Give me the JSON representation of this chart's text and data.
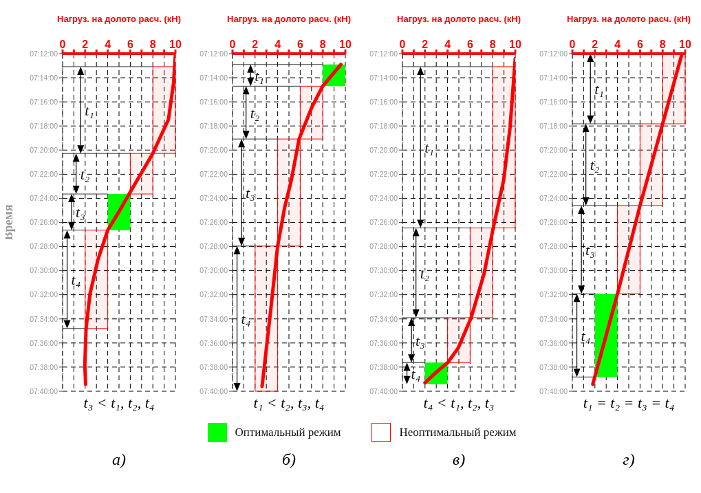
{
  "chart_data": [
    {
      "type": "line",
      "xlabel": "Нагруз. на долото расч. (кН)",
      "ylabel": "Время",
      "xlim": [
        0,
        10
      ],
      "xticks": [
        0,
        {
          "value": 1,
          "label": null
        },
        2,
        {
          "value": 3,
          "label": null
        },
        4,
        {
          "value": 5,
          "label": null
        },
        6,
        {
          "value": 7,
          "label": null
        },
        8,
        {
          "value": 9,
          "label": null
        },
        10
      ],
      "ylim": [
        7.6667,
        7.2
      ],
      "yticks": [
        {
          "value": 7.2,
          "label": "07:12:00"
        },
        {
          "value": 7.2333,
          "label": "07:14:00"
        },
        {
          "value": 7.2667,
          "label": "07:16:00"
        },
        {
          "value": 7.3,
          "label": "07:18:00"
        },
        {
          "value": 7.3333,
          "label": "07:20:00"
        },
        {
          "value": 7.3667,
          "label": "07:22:00"
        },
        {
          "value": 7.4,
          "label": "07:24:00"
        },
        {
          "value": 7.4333,
          "label": "07:26:00"
        },
        {
          "value": 7.4667,
          "label": "07:28:00"
        },
        {
          "value": 7.5,
          "label": "07:30:00"
        },
        {
          "value": 7.5333,
          "label": "07:32:00"
        },
        {
          "value": 7.5667,
          "label": "07:34:00"
        },
        {
          "value": 7.6,
          "label": "07:36:00"
        },
        {
          "value": 7.6333,
          "label": "07:38:00"
        },
        {
          "value": 7.6667,
          "label": "07:40:00"
        }
      ],
      "grid": true,
      "series": [
        {
          "type": "line",
          "color": "#ff0000",
          "x": [
            8,
            10
          ],
          "values": [
            null,
            null
          ],
          "lower": [
            7.218,
            7.218
          ],
          "upper": [
            7.338,
            7.338
          ]
        },
        {
          "type": "line",
          "color": "#ff0000",
          "x": [
            6,
            8
          ],
          "values": [
            null,
            null
          ],
          "lower": [
            7.338,
            7.338
          ],
          "upper": [
            7.394,
            7.394
          ]
        },
        {
          "type": "line",
          "color": "#00ff00",
          "x": [
            4,
            6
          ],
          "values": [
            null,
            null
          ],
          "lower": [
            7.394,
            7.394
          ],
          "upper": [
            7.444,
            7.444
          ]
        },
        {
          "type": "line",
          "color": "#ff0000",
          "x": [
            2,
            4
          ],
          "values": [
            null,
            null
          ],
          "lower": [
            7.444,
            7.444
          ],
          "upper": [
            7.58,
            7.58
          ]
        },
        {
          "type": "line",
          "color": "#ff0000",
          "x": [
            10,
            9.84,
            9.38,
            7.99,
            5.9,
            4.98,
            4.0,
            3.13,
            2.43,
            2.08,
            1.97,
            2.04
          ],
          "values": [
            7.2,
            7.24,
            7.291,
            7.338,
            7.394,
            7.419,
            7.444,
            7.485,
            7.532,
            7.58,
            7.631,
            7.657
          ]
        }
      ],
      "ref_lines": [
        {
          "axis": "y",
          "value": 7.218,
          "color": "#333333"
        },
        {
          "axis": "y",
          "value": 7.338,
          "color": "#333333"
        },
        {
          "axis": "y",
          "value": 7.394,
          "color": "#333333"
        },
        {
          "axis": "y",
          "value": 7.444,
          "color": "#333333"
        },
        {
          "axis": "y",
          "value": 7.58,
          "color": "#333333"
        }
      ],
      "annotations": [
        "t₃ < t₁, t₂, t₄",
        "а)",
        "t₁",
        "t₂",
        "t₃",
        "t₄"
      ]
    },
    {
      "type": "line",
      "xlabel": "Нагруз. на долото расч. (кН)",
      "xlim": [
        0,
        10
      ],
      "xticks": [
        0,
        {
          "value": 1,
          "label": null
        },
        2,
        {
          "value": 3,
          "label": null
        },
        4,
        {
          "value": 5,
          "label": null
        },
        6,
        {
          "value": 7,
          "label": null
        },
        8,
        {
          "value": 9,
          "label": null
        },
        10
      ],
      "ylim": [
        7.6667,
        7.2
      ],
      "yticks": [
        {
          "value": 7.2,
          "label": "07:12:00"
        },
        {
          "value": 7.2333,
          "label": "07:14:00"
        },
        {
          "value": 7.2667,
          "label": "07:16:00"
        },
        {
          "value": 7.3,
          "label": "07:18:00"
        },
        {
          "value": 7.3333,
          "label": "07:20:00"
        },
        {
          "value": 7.3667,
          "label": "07:22:00"
        },
        {
          "value": 7.4,
          "label": "07:24:00"
        },
        {
          "value": 7.4333,
          "label": "07:26:00"
        },
        {
          "value": 7.4667,
          "label": "07:28:00"
        },
        {
          "value": 7.5,
          "label": "07:30:00"
        },
        {
          "value": 7.5333,
          "label": "07:32:00"
        },
        {
          "value": 7.5667,
          "label": "07:34:00"
        },
        {
          "value": 7.6,
          "label": "07:36:00"
        },
        {
          "value": 7.6333,
          "label": "07:38:00"
        },
        {
          "value": 7.6667,
          "label": "07:40:00"
        }
      ],
      "grid": true,
      "legend": "bottom",
      "series": [
        {
          "type": "line",
          "name": "Оптимальный режим",
          "color": "#00ff00",
          "x": [
            8,
            10
          ],
          "values": [
            null,
            null
          ],
          "lower": [
            7.215,
            7.215
          ],
          "upper": [
            7.245,
            7.245
          ]
        },
        {
          "type": "line",
          "color": "#ff0000",
          "x": [
            6,
            8
          ],
          "values": [
            null,
            null
          ],
          "lower": [
            7.245,
            7.245
          ],
          "upper": [
            7.318,
            7.318
          ]
        },
        {
          "type": "line",
          "color": "#ff0000",
          "x": [
            4,
            6
          ],
          "values": [
            null,
            null
          ],
          "lower": [
            7.318,
            7.318
          ],
          "upper": [
            7.466,
            7.466
          ]
        },
        {
          "type": "line",
          "color": "#ff0000",
          "x": [
            2,
            4
          ],
          "values": [
            null,
            null
          ],
          "lower": [
            7.466,
            7.466
          ],
          "upper": [
            7.6667,
            7.6667
          ]
        },
        {
          "type": "line",
          "color": "#ff0000",
          "x": [
            9.6,
            7.99,
            7.06,
            5.9,
            5.21,
            4.63,
            4.0,
            3.36,
            2.62
          ],
          "values": [
            7.215,
            7.245,
            7.273,
            7.318,
            7.375,
            7.412,
            7.466,
            7.558,
            7.66
          ]
        }
      ],
      "ref_lines": [
        {
          "axis": "y",
          "value": 7.215,
          "color": "#333333"
        },
        {
          "axis": "y",
          "value": 7.245,
          "color": "#333333"
        },
        {
          "axis": "y",
          "value": 7.318,
          "color": "#333333"
        },
        {
          "axis": "y",
          "value": 7.466,
          "color": "#333333"
        }
      ],
      "annotations": [
        "t₁ < t₂, t₃, t₄",
        "б)",
        "t₁",
        "t₂",
        "t₃",
        "t₄"
      ]
    },
    {
      "type": "line",
      "xlabel": "Нагруз. на долото расч. (кН)",
      "xlim": [
        0,
        10
      ],
      "xticks": [
        0,
        {
          "value": 1,
          "label": null
        },
        2,
        {
          "value": 3,
          "label": null
        },
        4,
        {
          "value": 5,
          "label": null
        },
        6,
        {
          "value": 7,
          "label": null
        },
        8,
        {
          "value": 9,
          "label": null
        },
        10
      ],
      "ylim": [
        7.6667,
        7.2
      ],
      "yticks": [
        {
          "value": 7.2,
          "label": "07:12:00"
        },
        {
          "value": 7.2333,
          "label": "07:14:00"
        },
        {
          "value": 7.2667,
          "label": "07:16:00"
        },
        {
          "value": 7.3,
          "label": "07:18:00"
        },
        {
          "value": 7.3333,
          "label": "07:20:00"
        },
        {
          "value": 7.3667,
          "label": "07:22:00"
        },
        {
          "value": 7.4,
          "label": "07:24:00"
        },
        {
          "value": 7.4333,
          "label": "07:26:00"
        },
        {
          "value": 7.4667,
          "label": "07:28:00"
        },
        {
          "value": 7.5,
          "label": "07:30:00"
        },
        {
          "value": 7.5333,
          "label": "07:32:00"
        },
        {
          "value": 7.5667,
          "label": "07:34:00"
        },
        {
          "value": 7.6,
          "label": "07:36:00"
        },
        {
          "value": 7.6333,
          "label": "07:38:00"
        },
        {
          "value": 7.6667,
          "label": "07:40:00"
        }
      ],
      "grid": true,
      "legend": "bottom",
      "series": [
        {
          "type": "line",
          "name": "Неоптимальный режим",
          "color": "#ff0000",
          "x": [
            8,
            10
          ],
          "values": [
            null,
            null
          ],
          "lower": [
            7.218,
            7.218
          ],
          "upper": [
            7.441,
            7.441
          ]
        },
        {
          "type": "line",
          "color": "#ff0000",
          "x": [
            6,
            8
          ],
          "values": [
            null,
            null
          ],
          "lower": [
            7.441,
            7.441
          ],
          "upper": [
            7.565,
            7.565
          ]
        },
        {
          "type": "line",
          "color": "#ff0000",
          "x": [
            4,
            6
          ],
          "values": [
            null,
            null
          ],
          "lower": [
            7.565,
            7.565
          ],
          "upper": [
            7.627,
            7.627
          ]
        },
        {
          "type": "line",
          "color": "#00ff00",
          "x": [
            2,
            4
          ],
          "values": [
            null,
            null
          ],
          "lower": [
            7.627,
            7.627
          ],
          "upper": [
            7.657,
            7.657
          ]
        },
        {
          "type": "line",
          "color": "#ff0000",
          "x": [
            10,
            9.54,
            8.97,
            8.05,
            7.24,
            6.09,
            4.94,
            4.02,
            3.1,
            2.0
          ],
          "values": [
            7.207,
            7.302,
            7.375,
            7.441,
            7.504,
            7.565,
            7.607,
            7.627,
            7.639,
            7.655
          ]
        }
      ],
      "ref_lines": [
        {
          "axis": "y",
          "value": 7.218,
          "color": "#333333"
        },
        {
          "axis": "y",
          "value": 7.441,
          "color": "#333333"
        },
        {
          "axis": "y",
          "value": 7.565,
          "color": "#333333"
        },
        {
          "axis": "y",
          "value": 7.627,
          "color": "#333333"
        }
      ],
      "annotations": [
        "t₄ < t₁, t₂, t₃",
        "в)",
        "t₁",
        "t₂",
        "t₃",
        "t₄"
      ]
    },
    {
      "type": "line",
      "xlabel": "Нагруз. на долото расч. (кН)",
      "xlim": [
        0,
        10
      ],
      "xticks": [
        0,
        {
          "value": 1,
          "label": null
        },
        2,
        {
          "value": 3,
          "label": null
        },
        4,
        {
          "value": 5,
          "label": null
        },
        6,
        {
          "value": 7,
          "label": null
        },
        8,
        {
          "value": 9,
          "label": null
        },
        10
      ],
      "ylim": [
        7.6667,
        7.2
      ],
      "yticks": [
        {
          "value": 7.2,
          "label": "07:12:00"
        },
        {
          "value": 7.2333,
          "label": "07:14:00"
        },
        {
          "value": 7.2667,
          "label": "07:16:00"
        },
        {
          "value": 7.3,
          "label": "07:18:00"
        },
        {
          "value": 7.3333,
          "label": "07:20:00"
        },
        {
          "value": 7.3667,
          "label": "07:22:00"
        },
        {
          "value": 7.4,
          "label": "07:24:00"
        },
        {
          "value": 7.4333,
          "label": "07:26:00"
        },
        {
          "value": 7.4667,
          "label": "07:28:00"
        },
        {
          "value": 7.5,
          "label": "07:30:00"
        },
        {
          "value": 7.5333,
          "label": "07:32:00"
        },
        {
          "value": 7.5667,
          "label": "07:34:00"
        },
        {
          "value": 7.6,
          "label": "07:36:00"
        },
        {
          "value": 7.6333,
          "label": "07:38:00"
        },
        {
          "value": 7.6667,
          "label": "07:40:00"
        }
      ],
      "grid": true,
      "series": [
        {
          "type": "line",
          "color": "#ff0000",
          "x": [
            8,
            10
          ],
          "values": [
            null,
            null
          ],
          "lower": [
            7.2,
            7.2
          ],
          "upper": [
            7.297,
            7.297
          ]
        },
        {
          "type": "line",
          "color": "#ff0000",
          "x": [
            6,
            8
          ],
          "values": [
            null,
            null
          ],
          "lower": [
            7.297,
            7.297
          ],
          "upper": [
            7.41,
            7.41
          ]
        },
        {
          "type": "line",
          "color": "#ff0000",
          "x": [
            4,
            6
          ],
          "values": [
            null,
            null
          ],
          "lower": [
            7.41,
            7.41
          ],
          "upper": [
            7.532,
            7.532
          ]
        },
        {
          "type": "line",
          "color": "#00ff00",
          "x": [
            2,
            4
          ],
          "values": [
            null,
            null
          ],
          "lower": [
            7.532,
            7.532
          ],
          "upper": [
            7.647,
            7.647
          ]
        },
        {
          "type": "line",
          "color": "#ff0000",
          "x": [
            9.72,
            8,
            6,
            4,
            1.81
          ],
          "values": [
            7.2,
            7.297,
            7.41,
            7.532,
            7.657
          ]
        }
      ],
      "ref_lines": [
        {
          "axis": "y",
          "value": 7.297,
          "color": "#333333"
        },
        {
          "axis": "y",
          "value": 7.41,
          "color": "#333333"
        },
        {
          "axis": "y",
          "value": 7.532,
          "color": "#333333"
        },
        {
          "axis": "y",
          "value": 7.647,
          "color": "#333333"
        }
      ],
      "annotations": [
        "t₁ = t₂ = t₃ = t₄",
        "г)",
        "t₁",
        "t₂",
        "t₃",
        "t₄"
      ]
    }
  ]
}
